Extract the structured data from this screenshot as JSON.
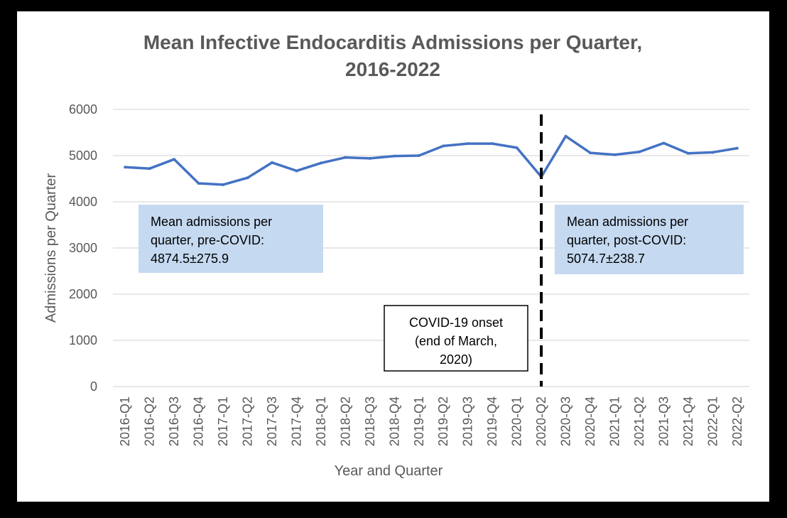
{
  "chart_data": {
    "type": "line",
    "title_lines": [
      "Mean Infective Endocarditis Admissions per Quarter,",
      "2016-2022"
    ],
    "xlabel": "Year and Quarter",
    "ylabel": "Admissions per Quarter",
    "ylim": [
      0,
      6000
    ],
    "yticks": [
      0,
      1000,
      2000,
      3000,
      4000,
      5000,
      6000
    ],
    "grid": "horizontal",
    "categories": [
      "2016-Q1",
      "2016-Q2",
      "2016-Q3",
      "2016-Q4",
      "2017-Q1",
      "2017-Q2",
      "2017-Q3",
      "2017-Q4",
      "2018-Q1",
      "2018-Q2",
      "2018-Q3",
      "2018-Q4",
      "2019-Q1",
      "2019-Q2",
      "2019-Q3",
      "2019-Q4",
      "2020-Q1",
      "2020-Q2",
      "2020-Q3",
      "2020-Q4",
      "2021-Q1",
      "2021-Q2",
      "2021-Q3",
      "2021-Q4",
      "2022-Q1",
      "2022-Q2"
    ],
    "series": [
      {
        "color": "#4472C4",
        "values": [
          4750,
          4720,
          4920,
          4400,
          4370,
          4520,
          4850,
          4670,
          4840,
          4960,
          4940,
          4990,
          5000,
          5210,
          5260,
          5260,
          5170,
          4540,
          5420,
          5060,
          5020,
          5080,
          5270,
          5050,
          5070,
          5160
        ]
      }
    ],
    "vline": {
      "at_category": "2020-Q2",
      "style": "dashed",
      "color": "#000000"
    },
    "annotations": [
      {
        "id": "pre-covid",
        "lines": [
          "Mean admissions per",
          "quarter, pre-COVID:",
          "4874.5±275.9"
        ],
        "fill": "#C5D9F1"
      },
      {
        "id": "post-covid",
        "lines": [
          "Mean admissions per",
          "quarter, post-COVID:",
          "5074.7±238.7"
        ],
        "fill": "#C5D9F1"
      },
      {
        "id": "covid-onset",
        "lines": [
          "COVID-19 onset",
          "(end of March,",
          "2020)"
        ],
        "fill": "#FFFFFF"
      }
    ]
  }
}
